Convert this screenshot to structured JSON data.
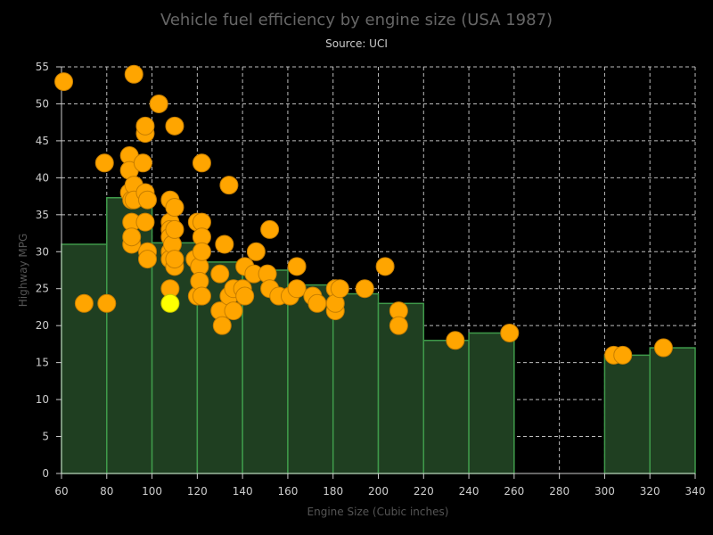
{
  "chart_data": {
    "type": "scatter",
    "title": "Vehicle fuel efficiency by engine size (USA 1987)",
    "subtitle": "Source: UCI",
    "xlabel": "Engine Size (Cubic inches)",
    "ylabel": "Highway MPG",
    "xlim": [
      60,
      340
    ],
    "ylim": [
      0,
      55
    ],
    "x_ticks": [
      60,
      80,
      100,
      120,
      140,
      160,
      180,
      200,
      220,
      240,
      260,
      280,
      300,
      320,
      340
    ],
    "y_ticks": [
      0,
      5,
      10,
      15,
      20,
      25,
      30,
      35,
      40,
      45,
      50,
      55
    ],
    "grid": true,
    "colors": {
      "points": "#ffa500",
      "highlight": "#ffff00",
      "bars": "#1f3f21",
      "bar_border": "#3f9a4a"
    },
    "histogram": [
      {
        "x0": 60,
        "x1": 80,
        "y": 31
      },
      {
        "x0": 80,
        "x1": 100,
        "y": 37.3
      },
      {
        "x0": 100,
        "x1": 120,
        "y": 31.2
      },
      {
        "x0": 120,
        "x1": 140,
        "y": 28.6
      },
      {
        "x0": 140,
        "x1": 160,
        "y": 27.5
      },
      {
        "x0": 160,
        "x1": 180,
        "y": 25.5
      },
      {
        "x0": 180,
        "x1": 200,
        "y": 24.3
      },
      {
        "x0": 200,
        "x1": 220,
        "y": 23
      },
      {
        "x0": 220,
        "x1": 240,
        "y": 18
      },
      {
        "x0": 240,
        "x1": 260,
        "y": 19
      },
      {
        "x0": 300,
        "x1": 320,
        "y": 16
      },
      {
        "x0": 320,
        "x1": 340,
        "y": 17
      }
    ],
    "points": [
      [
        61,
        53
      ],
      [
        70,
        23
      ],
      [
        79,
        42
      ],
      [
        80,
        23
      ],
      [
        90,
        43
      ],
      [
        90,
        41
      ],
      [
        90,
        38
      ],
      [
        91,
        31
      ],
      [
        91,
        34
      ],
      [
        91,
        32
      ],
      [
        91,
        37
      ],
      [
        92,
        54
      ],
      [
        92,
        39
      ],
      [
        92,
        37
      ],
      [
        96,
        42
      ],
      [
        97,
        46
      ],
      [
        97,
        38
      ],
      [
        97,
        47
      ],
      [
        98,
        37
      ],
      [
        97,
        34
      ],
      [
        98,
        30
      ],
      [
        98,
        29
      ],
      [
        103,
        50
      ],
      [
        108,
        37
      ],
      [
        108,
        34
      ],
      [
        108,
        33
      ],
      [
        108,
        32
      ],
      [
        108,
        30
      ],
      [
        108,
        29
      ],
      [
        108,
        25
      ],
      [
        110,
        47
      ],
      [
        110,
        36
      ],
      [
        109,
        31
      ],
      [
        110,
        28
      ],
      [
        110,
        29
      ],
      [
        110,
        33
      ],
      [
        119,
        29
      ],
      [
        120,
        34
      ],
      [
        120,
        24
      ],
      [
        121,
        28
      ],
      [
        121,
        26
      ],
      [
        122,
        42
      ],
      [
        122,
        34
      ],
      [
        122,
        32
      ],
      [
        122,
        30
      ],
      [
        122,
        24
      ],
      [
        130,
        27
      ],
      [
        130,
        22
      ],
      [
        131,
        20
      ],
      [
        132,
        31
      ],
      [
        134,
        39
      ],
      [
        134,
        24
      ],
      [
        136,
        25
      ],
      [
        136,
        22
      ],
      [
        141,
        28
      ],
      [
        140,
        25
      ],
      [
        141,
        24
      ],
      [
        145,
        27
      ],
      [
        146,
        30
      ],
      [
        151,
        27
      ],
      [
        152,
        33
      ],
      [
        152,
        25
      ],
      [
        156,
        24
      ],
      [
        161,
        24
      ],
      [
        164,
        28
      ],
      [
        164,
        25
      ],
      [
        171,
        24
      ],
      [
        173,
        23
      ],
      [
        181,
        25
      ],
      [
        181,
        22
      ],
      [
        181,
        23
      ],
      [
        183,
        25
      ],
      [
        194,
        25
      ],
      [
        203,
        28
      ],
      [
        209,
        22
      ],
      [
        209,
        20
      ],
      [
        234,
        18
      ],
      [
        258,
        19
      ],
      [
        304,
        16
      ],
      [
        308,
        16
      ],
      [
        326,
        17
      ]
    ],
    "highlight_point": [
      108,
      23
    ]
  }
}
